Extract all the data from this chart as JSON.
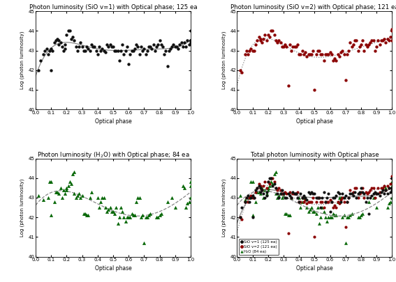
{
  "panel_a": {
    "title": "Photon luminosity (SiO v=1) with Optical phase; 125 ea",
    "color": "#111111",
    "marker": "s",
    "fit_style": "-",
    "points_x": [
      0.02,
      0.03,
      0.05,
      0.06,
      0.07,
      0.08,
      0.09,
      0.1,
      0.1,
      0.11,
      0.12,
      0.13,
      0.14,
      0.15,
      0.15,
      0.16,
      0.17,
      0.18,
      0.19,
      0.19,
      0.2,
      0.21,
      0.22,
      0.23,
      0.24,
      0.25,
      0.26,
      0.27,
      0.28,
      0.29,
      0.3,
      0.31,
      0.32,
      0.33,
      0.34,
      0.35,
      0.36,
      0.37,
      0.38,
      0.39,
      0.4,
      0.41,
      0.42,
      0.43,
      0.44,
      0.45,
      0.46,
      0.47,
      0.48,
      0.49,
      0.5,
      0.51,
      0.52,
      0.53,
      0.54,
      0.55,
      0.56,
      0.57,
      0.58,
      0.59,
      0.6,
      0.61,
      0.62,
      0.63,
      0.64,
      0.65,
      0.66,
      0.67,
      0.68,
      0.69,
      0.7,
      0.71,
      0.72,
      0.73,
      0.74,
      0.75,
      0.76,
      0.77,
      0.78,
      0.79,
      0.8,
      0.81,
      0.82,
      0.83,
      0.84,
      0.85,
      0.86,
      0.87,
      0.88,
      0.89,
      0.9,
      0.91,
      0.92,
      0.93,
      0.94,
      0.95,
      0.96,
      0.97,
      0.98,
      0.99,
      1.0,
      1.0,
      1.0,
      1.0,
      1.0
    ],
    "points_y": [
      42.0,
      42.5,
      42.8,
      43.0,
      43.1,
      42.8,
      43.0,
      43.1,
      42.0,
      43.0,
      43.4,
      43.5,
      43.6,
      43.3,
      43.5,
      43.4,
      43.2,
      43.0,
      43.3,
      43.1,
      43.8,
      44.0,
      44.0,
      43.6,
      43.7,
      43.5,
      43.2,
      43.0,
      43.2,
      43.4,
      43.2,
      43.0,
      43.0,
      43.2,
      43.1,
      43.0,
      43.3,
      43.2,
      43.2,
      43.0,
      42.8,
      43.2,
      43.0,
      43.1,
      43.0,
      42.9,
      43.3,
      43.2,
      43.3,
      43.2,
      43.2,
      43.0,
      43.0,
      43.0,
      42.5,
      43.0,
      43.3,
      42.8,
      43.0,
      43.2,
      42.3,
      42.8,
      43.0,
      43.0,
      43.1,
      43.3,
      43.2,
      42.8,
      43.2,
      43.0,
      43.1,
      42.8,
      43.0,
      43.2,
      43.2,
      43.1,
      43.3,
      43.0,
      43.2,
      43.3,
      43.5,
      43.3,
      43.2,
      42.8,
      43.0,
      42.2,
      43.0,
      43.1,
      43.2,
      43.3,
      43.2,
      43.2,
      43.1,
      43.3,
      43.4,
      43.2,
      43.4,
      43.2,
      43.5,
      43.3,
      43.5,
      43.5,
      43.4,
      43.5,
      44.0
    ]
  },
  "panel_b": {
    "title": "Photon luminosity (SiO v=2) with Optical phase; 121 ea",
    "color": "#8B0000",
    "marker": "s",
    "fit_style": ":",
    "points_x": [
      0.02,
      0.03,
      0.05,
      0.06,
      0.07,
      0.08,
      0.09,
      0.1,
      0.11,
      0.12,
      0.13,
      0.14,
      0.15,
      0.15,
      0.16,
      0.17,
      0.18,
      0.19,
      0.2,
      0.21,
      0.22,
      0.23,
      0.24,
      0.25,
      0.26,
      0.27,
      0.28,
      0.29,
      0.3,
      0.31,
      0.32,
      0.33,
      0.34,
      0.35,
      0.36,
      0.37,
      0.38,
      0.39,
      0.4,
      0.41,
      0.42,
      0.43,
      0.44,
      0.45,
      0.46,
      0.47,
      0.48,
      0.49,
      0.5,
      0.51,
      0.52,
      0.53,
      0.54,
      0.55,
      0.56,
      0.57,
      0.58,
      0.59,
      0.6,
      0.61,
      0.62,
      0.63,
      0.64,
      0.65,
      0.66,
      0.67,
      0.68,
      0.69,
      0.7,
      0.71,
      0.72,
      0.73,
      0.74,
      0.75,
      0.76,
      0.77,
      0.78,
      0.79,
      0.8,
      0.81,
      0.82,
      0.83,
      0.84,
      0.85,
      0.86,
      0.87,
      0.88,
      0.89,
      0.9,
      0.91,
      0.92,
      0.93,
      0.94,
      0.95,
      0.96,
      0.97,
      0.98,
      0.99,
      1.0,
      1.0,
      1.0
    ],
    "points_y": [
      42.0,
      41.9,
      42.8,
      43.0,
      42.8,
      43.0,
      43.1,
      43.0,
      43.0,
      43.3,
      43.5,
      43.7,
      43.6,
      43.5,
      43.4,
      43.6,
      43.8,
      43.5,
      43.8,
      43.7,
      44.0,
      44.0,
      43.8,
      43.5,
      43.4,
      43.5,
      43.4,
      43.2,
      43.2,
      43.3,
      43.2,
      41.2,
      43.3,
      43.0,
      43.2,
      43.2,
      43.2,
      43.3,
      42.8,
      42.8,
      43.0,
      42.8,
      42.9,
      42.7,
      42.8,
      42.8,
      42.8,
      43.0,
      41.0,
      42.8,
      43.0,
      43.0,
      42.8,
      42.8,
      42.5,
      42.8,
      42.8,
      42.8,
      42.9,
      42.8,
      42.5,
      42.6,
      42.5,
      42.8,
      42.7,
      42.9,
      43.0,
      42.8,
      41.5,
      42.8,
      43.0,
      43.4,
      43.2,
      43.3,
      43.5,
      43.5,
      43.0,
      43.2,
      43.3,
      43.5,
      43.0,
      43.3,
      43.2,
      43.3,
      43.4,
      43.5,
      43.5,
      43.0,
      43.2,
      43.5,
      43.3,
      43.5,
      43.5,
      43.6,
      43.4,
      43.6,
      43.5,
      43.7,
      43.5,
      44.0,
      44.1
    ]
  },
  "panel_c": {
    "title": "Photon luminosity (H$_2$O) with Optical phase; 84 ea",
    "color": "#006400",
    "marker": "^",
    "fit_style": "--",
    "points_x": [
      0.02,
      0.05,
      0.08,
      0.09,
      0.1,
      0.1,
      0.12,
      0.13,
      0.14,
      0.15,
      0.16,
      0.17,
      0.18,
      0.19,
      0.2,
      0.2,
      0.21,
      0.22,
      0.23,
      0.24,
      0.25,
      0.25,
      0.26,
      0.27,
      0.28,
      0.29,
      0.3,
      0.31,
      0.32,
      0.33,
      0.34,
      0.35,
      0.36,
      0.4,
      0.41,
      0.42,
      0.43,
      0.44,
      0.45,
      0.46,
      0.47,
      0.48,
      0.49,
      0.5,
      0.51,
      0.52,
      0.53,
      0.54,
      0.55,
      0.56,
      0.57,
      0.58,
      0.59,
      0.6,
      0.61,
      0.62,
      0.63,
      0.64,
      0.65,
      0.66,
      0.67,
      0.68,
      0.69,
      0.7,
      0.71,
      0.72,
      0.73,
      0.74,
      0.78,
      0.79,
      0.8,
      0.81,
      0.85,
      0.88,
      0.9,
      0.95,
      0.96,
      0.97,
      0.98,
      0.99,
      1.0,
      1.0,
      1.0
    ],
    "points_y": [
      43.1,
      42.9,
      43.0,
      43.8,
      43.8,
      42.1,
      42.8,
      43.3,
      43.3,
      43.2,
      43.5,
      43.0,
      43.4,
      43.2,
      43.4,
      43.5,
      43.6,
      43.8,
      43.7,
      44.2,
      44.3,
      43.2,
      43.0,
      43.1,
      43.2,
      43.0,
      43.1,
      42.2,
      42.2,
      42.1,
      42.1,
      43.0,
      43.3,
      43.0,
      42.5,
      42.8,
      43.0,
      43.0,
      42.5,
      42.3,
      42.4,
      42.5,
      42.3,
      42.3,
      42.2,
      42.5,
      41.7,
      42.0,
      42.5,
      42.3,
      42.0,
      41.8,
      42.0,
      42.0,
      42.0,
      42.2,
      42.1,
      42.1,
      42.8,
      43.0,
      43.0,
      42.0,
      42.1,
      40.7,
      42.0,
      42.0,
      42.1,
      42.2,
      42.0,
      42.0,
      42.1,
      42.2,
      42.8,
      43.0,
      42.5,
      43.6,
      43.5,
      42.5,
      42.7,
      42.8,
      43.0,
      43.8,
      43.6
    ]
  },
  "ylim": [
    40,
    45
  ],
  "xlim": [
    0.0,
    1.0
  ],
  "xticks": [
    0.0,
    0.1,
    0.2,
    0.3,
    0.4,
    0.5,
    0.6,
    0.7,
    0.8,
    0.9,
    1.0
  ],
  "yticks": [
    40,
    41,
    42,
    43,
    44,
    45
  ],
  "xlabel": "Optical phase",
  "ylabel": "Log (photon luminosity)",
  "fit_color": "#888888",
  "legend_labels": [
    "SiO v=1 (125 ea)",
    "SiO v=2 (121 ea)",
    "H₂O (84 ea)"
  ],
  "legend_colors": [
    "#111111",
    "#8B0000",
    "#006400"
  ],
  "legend_markers": [
    "s",
    "s",
    "^"
  ],
  "panel_d_title": "Total photon luminosity with Optical phase",
  "bg_color": "#f0f0f0"
}
